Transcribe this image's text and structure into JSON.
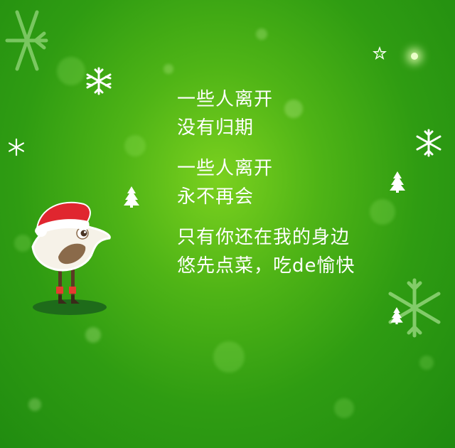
{
  "poem": {
    "stanza1": [
      "一些人离开",
      "没有归期"
    ],
    "stanza2": [
      "一些人离开",
      "永不再会"
    ],
    "stanza3": [
      "只有你还在我的身边",
      "悠先点菜，吃de愉快"
    ]
  },
  "colors": {
    "background_center": "#7bd11f",
    "background_edge": "#1f8a10",
    "text": "#ffffff",
    "hat_red": "#e0262f",
    "bird_body": "#f3efe6",
    "bird_wing": "#8a6a4a"
  },
  "icons": [
    "snowflake-icon",
    "christmas-tree-icon",
    "star-icon",
    "bird-mascot"
  ]
}
